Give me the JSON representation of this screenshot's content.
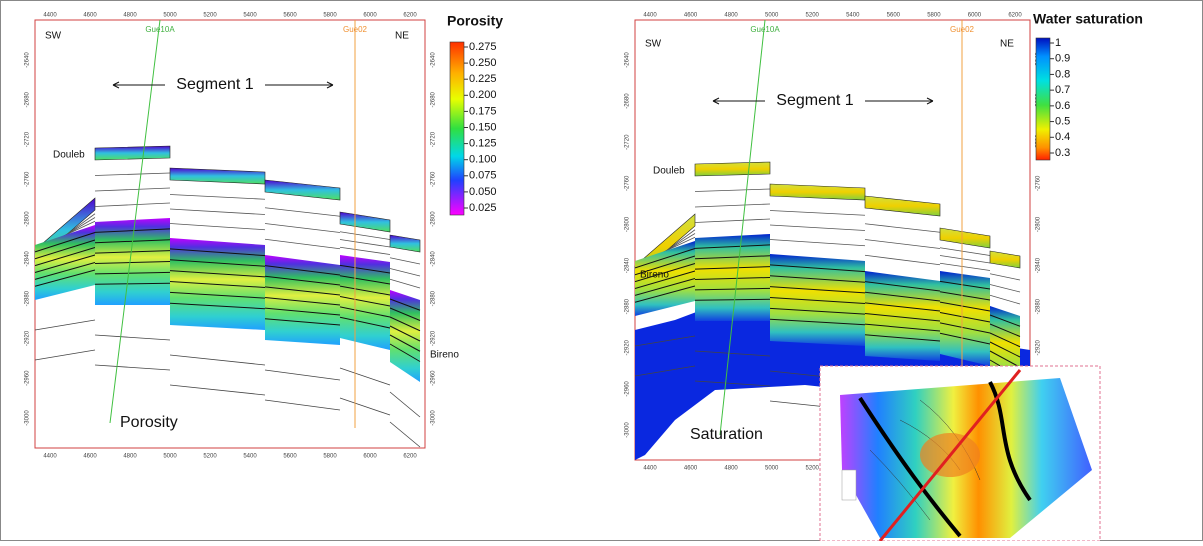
{
  "panels": [
    {
      "labels": {
        "sw": "SW",
        "ne": "NE",
        "well_a": "Gue10A",
        "well_b": "Gue02",
        "segment": "Segment 1",
        "horizon_top": "Douleb",
        "horizon_bottom": "Bireno",
        "caption": "Porosity"
      },
      "x_ticks": [
        "4400",
        "4600",
        "4800",
        "5000",
        "5200",
        "5400",
        "5600",
        "5800",
        "6000",
        "6200"
      ],
      "y_ticks": [
        "-2640",
        "-2680",
        "-2720",
        "-2760",
        "-2800",
        "-2840",
        "-2880",
        "-2920",
        "-2960",
        "-3000"
      ],
      "legend": {
        "title": "Porosity",
        "ticks": [
          "0.275",
          "0.250",
          "0.225",
          "0.200",
          "0.175",
          "0.150",
          "0.125",
          "0.100",
          "0.075",
          "0.050",
          "0.025"
        ]
      }
    },
    {
      "labels": {
        "sw": "SW",
        "ne": "NE",
        "well_a": "Gue10A",
        "well_b": "Gue02",
        "segment": "Segment 1",
        "horizon_top": "Douleb",
        "horizon_bottom": "Bireno",
        "caption": "Saturation"
      },
      "x_ticks": [
        "4400",
        "4600",
        "4800",
        "5000",
        "5200",
        "5400",
        "5600",
        "5800",
        "6000",
        "6200"
      ],
      "y_ticks": [
        "-2640",
        "-2680",
        "-2720",
        "-2760",
        "-2800",
        "-2840",
        "-2880",
        "-2920",
        "-2960",
        "-3000"
      ],
      "legend": {
        "title": "Water saturation",
        "ticks": [
          "1",
          "0.9",
          "0.8",
          "0.7",
          "0.6",
          "0.5",
          "0.4",
          "0.3"
        ]
      }
    }
  ]
}
